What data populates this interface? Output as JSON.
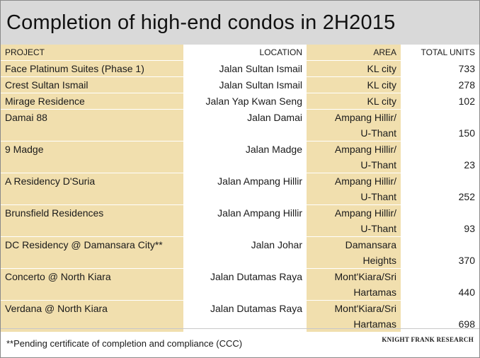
{
  "title": "Completion of high-end condos in 2H2015",
  "columns": [
    "PROJECT",
    "LOCATION",
    "AREA",
    "TOTAL UNITS"
  ],
  "rows": [
    {
      "project": "Face Platinum Suites (Phase 1)",
      "location": "Jalan Sultan Ismail",
      "area": [
        "KL city"
      ],
      "units": "733"
    },
    {
      "project": "Crest Sultan Ismail",
      "location": "Jalan Sultan Ismail",
      "area": [
        "KL city"
      ],
      "units": "278"
    },
    {
      "project": "Mirage Residence",
      "location": "Jalan Yap Kwan Seng",
      "area": [
        "KL city"
      ],
      "units": "102"
    },
    {
      "project": "Damai 88",
      "location": "Jalan Damai",
      "area": [
        "Ampang Hillir/",
        "U-Thant"
      ],
      "units": "150"
    },
    {
      "project": "9 Madge",
      "location": "Jalan Madge",
      "area": [
        "Ampang Hillir/",
        "U-Thant"
      ],
      "units": "23"
    },
    {
      "project": "A Residency D'Suria",
      "location": "Jalan Ampang Hillir",
      "area": [
        "Ampang Hillir/",
        "U-Thant"
      ],
      "units": "252"
    },
    {
      "project": "Brunsfield Residences",
      "location": "Jalan Ampang Hillir",
      "area": [
        "Ampang Hillir/",
        "U-Thant"
      ],
      "units": "93"
    },
    {
      "project": "DC Residency @ Damansara City**",
      "location": "Jalan Johar",
      "area": [
        "Damansara",
        "Heights"
      ],
      "units": "370"
    },
    {
      "project": "Concerto @ North Kiara",
      "location": "Jalan Dutamas Raya",
      "area": [
        "Mont'Kiara/Sri",
        "Hartamas"
      ],
      "units": "440"
    },
    {
      "project": "Verdana @ North Kiara",
      "location": "Jalan Dutamas Raya",
      "area": [
        "Mont'Kiara/Sri",
        "Hartamas"
      ],
      "units": "698"
    }
  ],
  "footnote": "**Pending certificate of completion and compliance (CCC)",
  "credit": "KNIGHT FRANK RESEARCH",
  "colors": {
    "title_bg": "#d9d9d9",
    "tan_column": "#f1dfae"
  }
}
